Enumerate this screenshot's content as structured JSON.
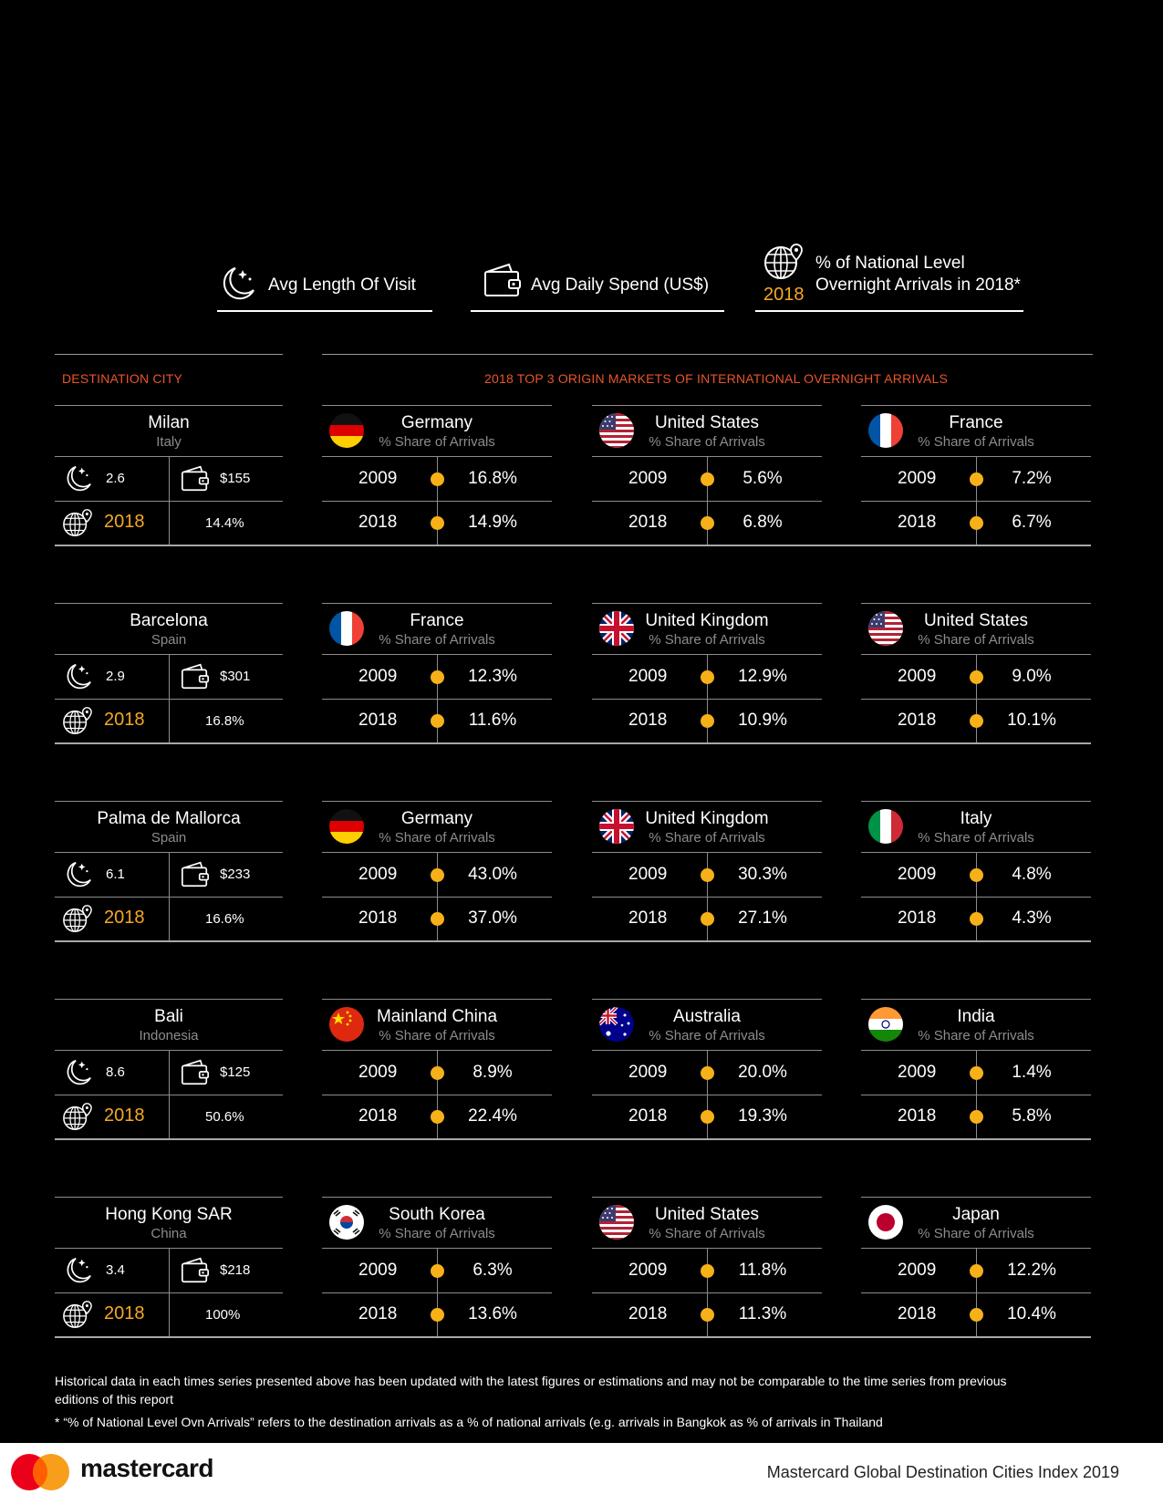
{
  "legend": {
    "length": "Avg Length Of Visit",
    "spend": "Avg Daily Spend (US$)",
    "share_year": "2018",
    "share_line1": "% of National Level",
    "share_line2": "Overnight Arrivals in 2018*"
  },
  "headers": {
    "destination": "DESTINATION CITY",
    "markets": "2018 TOP 3 ORIGIN MARKETS OF INTERNATIONAL OVERNIGHT ARRIVALS"
  },
  "market_sub": "% Share of Arrivals",
  "year_a": "2009",
  "year_b": "2018",
  "cities": [
    {
      "name": "Milan",
      "country": "Italy",
      "length": "2.6",
      "spend": "$155",
      "share": "14.4%",
      "markets": [
        {
          "name": "Germany",
          "flag": "germany",
          "v2009": "16.8%",
          "v2018": "14.9%"
        },
        {
          "name": "United States",
          "flag": "usa",
          "v2009": "5.6%",
          "v2018": "6.8%"
        },
        {
          "name": "France",
          "flag": "france",
          "v2009": "7.2%",
          "v2018": "6.7%"
        }
      ]
    },
    {
      "name": "Barcelona",
      "country": "Spain",
      "length": "2.9",
      "spend": "$301",
      "share": "16.8%",
      "markets": [
        {
          "name": "France",
          "flag": "france",
          "v2009": "12.3%",
          "v2018": "11.6%"
        },
        {
          "name": "United Kingdom",
          "flag": "uk",
          "v2009": "12.9%",
          "v2018": "10.9%"
        },
        {
          "name": "United States",
          "flag": "usa",
          "v2009": "9.0%",
          "v2018": "10.1%"
        }
      ]
    },
    {
      "name": "Palma de Mallorca",
      "country": "Spain",
      "length": "6.1",
      "spend": "$233",
      "share": "16.6%",
      "markets": [
        {
          "name": "Germany",
          "flag": "germany",
          "v2009": "43.0%",
          "v2018": "37.0%"
        },
        {
          "name": "United Kingdom",
          "flag": "uk",
          "v2009": "30.3%",
          "v2018": "27.1%"
        },
        {
          "name": "Italy",
          "flag": "italy",
          "v2009": "4.8%",
          "v2018": "4.3%"
        }
      ]
    },
    {
      "name": "Bali",
      "country": "Indonesia",
      "length": "8.6",
      "spend": "$125",
      "share": "50.6%",
      "markets": [
        {
          "name": "Mainland China",
          "flag": "china",
          "v2009": "8.9%",
          "v2018": "22.4%"
        },
        {
          "name": "Australia",
          "flag": "australia",
          "v2009": "20.0%",
          "v2018": "19.3%"
        },
        {
          "name": "India",
          "flag": "india",
          "v2009": "1.4%",
          "v2018": "5.8%"
        }
      ]
    },
    {
      "name": "Hong Kong SAR",
      "country": "China",
      "length": "3.4",
      "spend": "$218",
      "share": "100%",
      "markets": [
        {
          "name": "South Korea",
          "flag": "korea",
          "v2009": "6.3%",
          "v2018": "13.6%"
        },
        {
          "name": "United States",
          "flag": "usa",
          "v2009": "11.8%",
          "v2018": "11.3%"
        },
        {
          "name": "Japan",
          "flag": "japan",
          "v2009": "12.2%",
          "v2018": "10.4%"
        }
      ]
    }
  ],
  "notes": {
    "line1": "Historical data in each times series presented above has been updated with the latest figures or estimations and may not be comparable to the time series from previous editions of this report",
    "line2": "* “% of National Level Ovn Arrivals” refers to the destination arrivals as a % of national arrivals  (e.g. arrivals  in Bangkok as % of arrivals in Thailand"
  },
  "footer": {
    "brand": "mastercard",
    "title": "Mastercard Global Destination Cities Index 2019"
  }
}
